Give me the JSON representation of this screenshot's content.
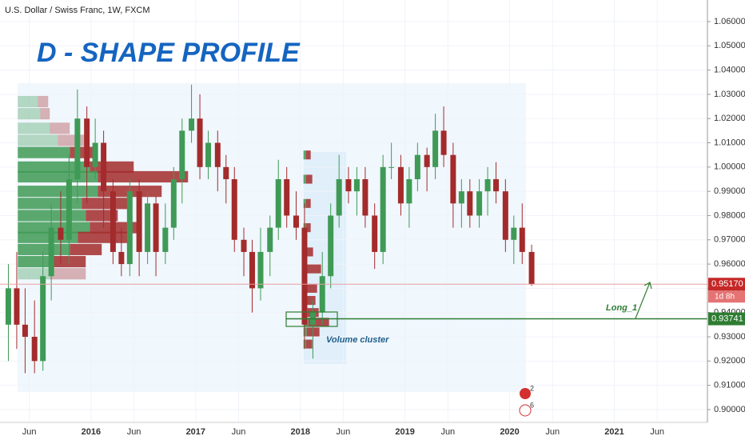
{
  "chart_data": {
    "type": "candlestick",
    "title": "D - SHAPE PROFILE",
    "symbol": "U.S. Dollar / Swiss Franc, 1W, FXCM",
    "x": [
      2015.21,
      2015.29,
      2015.37,
      2015.46,
      2015.54,
      2015.62,
      2015.71,
      2015.79,
      2015.87,
      2015.96,
      2016.04,
      2016.12,
      2016.21,
      2016.29,
      2016.37,
      2016.46,
      2016.54,
      2016.62,
      2016.71,
      2016.79,
      2016.87,
      2016.96,
      2017.04,
      2017.12,
      2017.21,
      2017.29,
      2017.37,
      2017.46,
      2017.54,
      2017.62,
      2017.71,
      2017.79,
      2017.87,
      2017.96,
      2018.04,
      2018.12,
      2018.21,
      2018.29,
      2018.37,
      2018.46,
      2018.54,
      2018.62,
      2018.71,
      2018.79,
      2018.87,
      2018.96,
      2019.04,
      2019.12,
      2019.21,
      2019.29,
      2019.37,
      2019.46,
      2019.54,
      2019.62,
      2019.71,
      2019.79,
      2019.87,
      2019.96,
      2020.04,
      2020.12,
      2020.21
    ],
    "open": [
      0.935,
      0.95,
      0.935,
      0.93,
      0.92,
      0.955,
      0.975,
      0.97,
      0.995,
      1.02,
      1.0,
      1.01,
      0.99,
      0.965,
      0.96,
      0.99,
      0.965,
      0.985,
      0.965,
      0.975,
      0.995,
      1.015,
      1.02,
      1.0,
      1.01,
      1.0,
      0.995,
      0.97,
      0.965,
      0.95,
      0.965,
      0.975,
      0.995,
      0.98,
      0.975,
      0.935,
      0.94,
      0.955,
      0.98,
      0.995,
      0.99,
      0.995,
      0.98,
      0.965,
      1.0,
      1.0,
      0.985,
      0.995,
      1.005,
      1.0,
      1.015,
      1.005,
      0.985,
      0.99,
      0.98,
      0.99,
      0.995,
      0.99,
      0.97,
      0.975,
      0.965
    ],
    "high": [
      0.96,
      0.965,
      0.95,
      0.945,
      0.965,
      0.985,
      0.99,
      1.005,
      1.032,
      1.025,
      1.02,
      1.015,
      0.995,
      0.975,
      0.995,
      0.995,
      0.99,
      0.988,
      0.985,
      1.0,
      1.02,
      1.034,
      1.03,
      1.015,
      1.015,
      1.005,
      1.0,
      0.975,
      0.97,
      0.975,
      0.98,
      1.003,
      1.0,
      0.99,
      0.985,
      0.945,
      0.965,
      0.985,
      1.005,
      1.0,
      1.0,
      1.0,
      0.985,
      1.005,
      1.01,
      1.005,
      1.0,
      1.01,
      1.008,
      1.022,
      1.025,
      1.01,
      0.995,
      0.995,
      0.995,
      1.0,
      1.002,
      0.995,
      0.98,
      0.985,
      0.968
    ],
    "low": [
      0.92,
      0.925,
      0.915,
      0.915,
      0.916,
      0.945,
      0.96,
      0.96,
      0.985,
      0.985,
      0.995,
      0.975,
      0.96,
      0.955,
      0.955,
      0.955,
      0.96,
      0.955,
      0.96,
      0.97,
      0.985,
      1.01,
      0.995,
      0.995,
      0.99,
      0.985,
      0.965,
      0.955,
      0.94,
      0.945,
      0.955,
      0.97,
      0.975,
      0.97,
      0.925,
      0.921,
      0.935,
      0.95,
      0.975,
      0.985,
      0.98,
      0.975,
      0.958,
      0.96,
      0.995,
      0.98,
      0.975,
      0.99,
      0.99,
      0.995,
      1.0,
      0.975,
      0.975,
      0.975,
      0.975,
      0.98,
      0.985,
      0.965,
      0.96,
      0.96,
      0.951
    ],
    "close": [
      0.95,
      0.935,
      0.93,
      0.92,
      0.955,
      0.975,
      0.97,
      0.995,
      1.02,
      1.0,
      1.01,
      0.99,
      0.965,
      0.96,
      0.99,
      0.965,
      0.985,
      0.965,
      0.975,
      0.995,
      1.015,
      1.02,
      1.0,
      1.01,
      1.0,
      0.995,
      0.97,
      0.965,
      0.95,
      0.965,
      0.975,
      0.995,
      0.98,
      0.975,
      0.935,
      0.94,
      0.955,
      0.98,
      0.995,
      0.99,
      0.995,
      0.98,
      0.965,
      1.0,
      1.0,
      0.985,
      0.995,
      1.005,
      1.0,
      1.015,
      1.005,
      0.985,
      0.99,
      0.98,
      0.99,
      0.995,
      0.99,
      0.97,
      0.975,
      0.965,
      0.9517
    ],
    "up_color": "#3f9a55",
    "down_color": "#a32b2b",
    "xlim": [
      2015.13,
      2021.89
    ],
    "xticks": [
      {
        "value": 2015.41,
        "label": "Jun"
      },
      2016,
      {
        "value": 2016.41,
        "label": "Jun"
      },
      2017,
      {
        "value": 2017.41,
        "label": "Jun"
      },
      2018,
      {
        "value": 2018.41,
        "label": "Jun"
      },
      2019,
      {
        "value": 2019.41,
        "label": "Jun"
      },
      2020,
      {
        "value": 2020.41,
        "label": "Jun"
      },
      2021,
      {
        "value": 2021.41,
        "label": "Jun"
      }
    ],
    "ylim": [
      0.8947,
      1.0689
    ],
    "yticks": [
      {
        "value": 0.9,
        "label": "0.90000"
      },
      {
        "value": 0.91,
        "label": "0.91000"
      },
      {
        "value": 0.92,
        "label": "0.92000"
      },
      {
        "value": 0.93,
        "label": "0.93000"
      },
      {
        "value": 0.94,
        "label": "0.94000"
      },
      {
        "value": 0.95,
        "label": "0.95000"
      },
      {
        "value": 0.96,
        "label": "0.96000"
      },
      {
        "value": 0.97,
        "label": "0.97000"
      },
      {
        "value": 0.98,
        "label": "0.98000"
      },
      {
        "value": 0.99,
        "label": "0.99000"
      },
      {
        "value": 1.0,
        "label": "1.00000"
      },
      {
        "value": 1.01,
        "label": "1.01000"
      },
      {
        "value": 1.02,
        "label": "1.02000"
      },
      {
        "value": 1.03,
        "label": "1.03000"
      },
      {
        "value": 1.04,
        "label": "1.04000"
      },
      {
        "value": 1.05,
        "label": "1.05000"
      },
      {
        "value": 1.06,
        "label": "1.06000"
      }
    ],
    "grid": true,
    "volume_profiles": [
      {
        "start": 2015.3,
        "row_size": 0.005,
        "value_area": [
          0.9585,
          1.0085
        ],
        "levels": [
          1.027,
          1.022,
          1.016,
          1.011,
          1.006,
          1.0,
          0.996,
          0.99,
          0.985,
          0.98,
          0.975,
          0.971,
          0.966,
          0.961,
          0.956
        ],
        "up": [
          25,
          28,
          40,
          50,
          65,
          90,
          100,
          100,
          80,
          85,
          90,
          75,
          65,
          45,
          40
        ],
        "down": [
          13,
          12,
          25,
          35,
          30,
          55,
          113,
          80,
          60,
          40,
          60,
          65,
          40,
          40,
          45
        ]
      },
      {
        "start": 2018.03,
        "row_size": 0.004,
        "value_area": [
          0.92,
          1.01
        ],
        "levels": [
          1.005,
          0.995,
          0.985,
          0.975,
          0.965,
          0.958,
          0.95,
          0.945,
          0.94,
          0.936,
          0.932,
          0.927
        ],
        "up": [
          3,
          3,
          3,
          3,
          2,
          2,
          3,
          3,
          5,
          6,
          4,
          3
        ],
        "down": [
          6,
          8,
          6,
          6,
          10,
          20,
          14,
          12,
          14,
          26,
          16,
          8
        ]
      }
    ],
    "last_price": {
      "value": 0.9517,
      "label": "0.95170"
    },
    "countdown": "1d 8h",
    "level_line": {
      "value": 0.93741,
      "label": "0.93741",
      "start": 2017.86
    },
    "annotations": [
      "Volume cluster",
      "Long_1"
    ],
    "events": [
      2,
      6
    ]
  }
}
